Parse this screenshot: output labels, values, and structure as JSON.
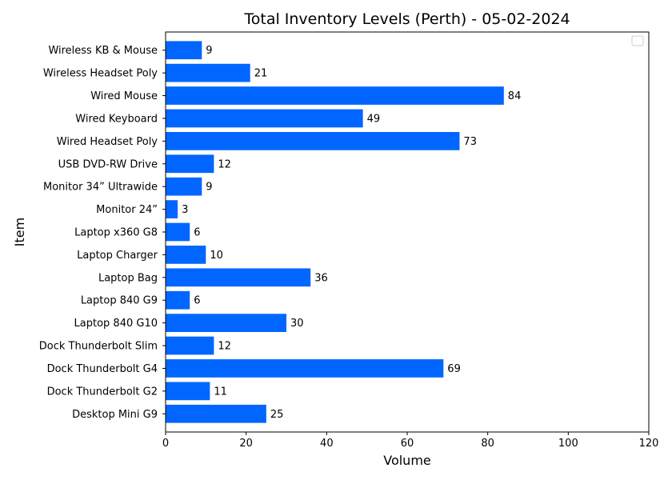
{
  "chart_data": {
    "type": "bar",
    "orientation": "horizontal",
    "title": "Total Inventory Levels (Perth) - 05-02-2024",
    "xlabel": "Volume",
    "ylabel": "Item",
    "xlim": [
      0,
      120
    ],
    "xticks": [
      0,
      20,
      40,
      60,
      80,
      100,
      120
    ],
    "grid": false,
    "legend_placement": "top-right",
    "bar_color": "#0066ff",
    "categories": [
      "Desktop Mini G9",
      "Dock Thunderbolt G2",
      "Dock Thunderbolt G4",
      "Dock Thunderbolt Slim",
      "Laptop 840 G10",
      "Laptop 840 G9",
      "Laptop Bag",
      "Laptop Charger ",
      "Laptop x360 G8",
      "Monitor 24”",
      "Monitor 34” Ultrawide",
      "USB DVD-RW Drive",
      "Wired Headset Poly",
      "Wired Keyboard",
      "Wired Mouse",
      "Wireless Headset Poly ",
      "Wireless KB & Mouse"
    ],
    "values": [
      25,
      11,
      69,
      12,
      30,
      6,
      36,
      10,
      6,
      3,
      9,
      12,
      73,
      49,
      84,
      21,
      9
    ]
  }
}
